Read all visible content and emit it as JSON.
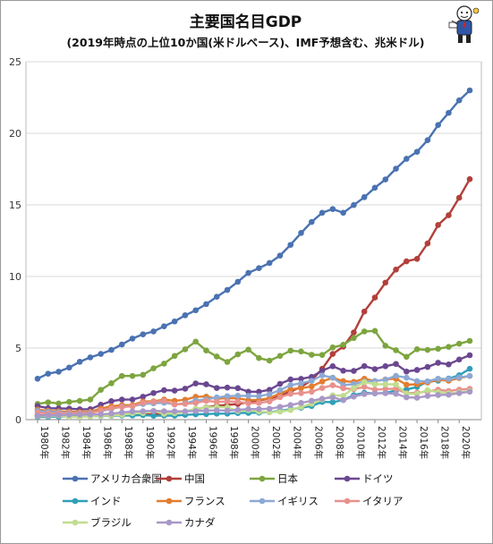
{
  "title": "主要国名目GDP",
  "subtitle": "(2019年時点の上位10か国(米ドルベース)、IMF予想含む、兆米ドル)",
  "chart_data": {
    "type": "line",
    "grid": "horizontal",
    "legend_position": "bottom",
    "ylim": [
      0,
      25
    ],
    "yticks": [
      "0",
      "5",
      "10",
      "15",
      "20",
      "25"
    ],
    "x": [
      1980,
      1981,
      1982,
      1983,
      1984,
      1985,
      1986,
      1987,
      1988,
      1989,
      1990,
      1991,
      1992,
      1993,
      1994,
      1995,
      1996,
      1997,
      1998,
      1999,
      2000,
      2001,
      2002,
      2003,
      2004,
      2005,
      2006,
      2007,
      2008,
      2009,
      2010,
      2011,
      2012,
      2013,
      2014,
      2015,
      2016,
      2017,
      2018,
      2019,
      2020,
      2021
    ],
    "xticks": [
      "1980年",
      "1982年",
      "1984年",
      "1986年",
      "1988年",
      "1990年",
      "1992年",
      "1994年",
      "1996年",
      "1998年",
      "2000年",
      "2002年",
      "2004年",
      "2006年",
      "2008年",
      "2010年",
      "2012年",
      "2014年",
      "2016年",
      "2018年",
      "2020年"
    ],
    "series": [
      {
        "name": "アメリカ合衆国",
        "color": "#4a72b2",
        "values": [
          2.86,
          3.21,
          3.35,
          3.64,
          4.04,
          4.35,
          4.59,
          4.87,
          5.25,
          5.66,
          5.96,
          6.16,
          6.52,
          6.86,
          7.29,
          7.64,
          8.07,
          8.58,
          9.06,
          9.63,
          10.25,
          10.58,
          10.94,
          11.46,
          12.21,
          13.04,
          13.81,
          14.45,
          14.71,
          14.45,
          14.99,
          15.54,
          16.2,
          16.78,
          17.53,
          18.22,
          18.71,
          19.52,
          20.58,
          21.43,
          22.3,
          23.0
        ]
      },
      {
        "name": "中国",
        "color": "#b1403b",
        "values": [
          0.3,
          0.29,
          0.28,
          0.3,
          0.31,
          0.31,
          0.3,
          0.27,
          0.31,
          0.35,
          0.36,
          0.38,
          0.43,
          0.44,
          0.56,
          0.73,
          0.86,
          0.96,
          1.03,
          1.09,
          1.21,
          1.34,
          1.47,
          1.66,
          1.96,
          2.29,
          2.75,
          3.55,
          4.59,
          5.1,
          6.09,
          7.55,
          8.53,
          9.57,
          10.48,
          11.06,
          11.23,
          12.31,
          13.6,
          14.28,
          15.5,
          16.8
        ]
      },
      {
        "name": "日本",
        "color": "#7da53f",
        "values": [
          1.1,
          1.21,
          1.13,
          1.24,
          1.31,
          1.4,
          2.08,
          2.54,
          3.05,
          3.05,
          3.13,
          3.58,
          3.91,
          4.45,
          4.91,
          5.45,
          4.83,
          4.41,
          4.03,
          4.56,
          4.89,
          4.3,
          4.12,
          4.45,
          4.82,
          4.76,
          4.53,
          4.52,
          5.04,
          5.23,
          5.7,
          6.16,
          6.2,
          5.16,
          4.85,
          4.39,
          4.92,
          4.87,
          4.95,
          5.08,
          5.3,
          5.5
        ]
      },
      {
        "name": "ドイツ",
        "color": "#6a4790",
        "values": [
          0.95,
          0.8,
          0.78,
          0.77,
          0.72,
          0.73,
          1.04,
          1.29,
          1.4,
          1.4,
          1.6,
          1.86,
          2.06,
          2.03,
          2.16,
          2.53,
          2.47,
          2.21,
          2.24,
          2.2,
          1.95,
          1.95,
          2.08,
          2.5,
          2.81,
          2.85,
          2.99,
          3.42,
          3.73,
          3.42,
          3.4,
          3.74,
          3.53,
          3.73,
          3.89,
          3.36,
          3.47,
          3.68,
          3.97,
          3.86,
          4.2,
          4.5
        ]
      },
      {
        "name": "インド",
        "color": "#2f9fb8",
        "values": [
          0.19,
          0.2,
          0.21,
          0.22,
          0.21,
          0.23,
          0.25,
          0.27,
          0.29,
          0.29,
          0.32,
          0.27,
          0.29,
          0.28,
          0.33,
          0.37,
          0.39,
          0.42,
          0.42,
          0.46,
          0.47,
          0.49,
          0.52,
          0.62,
          0.72,
          0.83,
          0.95,
          1.24,
          1.22,
          1.37,
          1.71,
          1.87,
          1.83,
          1.86,
          2.04,
          2.1,
          2.29,
          2.65,
          2.72,
          2.87,
          3.1,
          3.55
        ]
      },
      {
        "name": "フランス",
        "color": "#e37d2f",
        "values": [
          0.7,
          0.62,
          0.58,
          0.56,
          0.53,
          0.55,
          0.77,
          0.93,
          1.01,
          1.01,
          1.27,
          1.28,
          1.4,
          1.32,
          1.39,
          1.6,
          1.61,
          1.46,
          1.5,
          1.49,
          1.36,
          1.38,
          1.5,
          1.84,
          2.12,
          2.2,
          2.32,
          2.66,
          2.93,
          2.69,
          2.64,
          2.86,
          2.68,
          2.81,
          2.86,
          2.44,
          2.47,
          2.59,
          2.79,
          2.72,
          2.9,
          3.05
        ]
      },
      {
        "name": "イギリス",
        "color": "#8da9d4",
        "values": [
          0.6,
          0.55,
          0.51,
          0.48,
          0.46,
          0.49,
          0.6,
          0.75,
          0.91,
          0.93,
          1.09,
          1.14,
          1.18,
          1.06,
          1.14,
          1.34,
          1.41,
          1.55,
          1.64,
          1.67,
          1.66,
          1.64,
          1.78,
          2.06,
          2.42,
          2.54,
          2.71,
          3.09,
          2.93,
          2.41,
          2.48,
          2.66,
          2.7,
          2.79,
          3.06,
          2.93,
          2.69,
          2.68,
          2.86,
          2.83,
          2.95,
          3.05
        ]
      },
      {
        "name": "イタリア",
        "color": "#e8918c",
        "values": [
          0.48,
          0.43,
          0.43,
          0.44,
          0.44,
          0.45,
          0.64,
          0.8,
          0.88,
          0.93,
          1.18,
          1.24,
          1.32,
          1.06,
          1.1,
          1.17,
          1.31,
          1.24,
          1.27,
          1.25,
          1.14,
          1.17,
          1.27,
          1.57,
          1.8,
          1.85,
          1.95,
          2.21,
          2.4,
          2.19,
          2.13,
          2.29,
          2.09,
          2.14,
          2.16,
          1.84,
          1.88,
          1.96,
          2.09,
          2.0,
          2.1,
          2.15
        ]
      },
      {
        "name": "ブラジル",
        "color": "#c1dd8f",
        "values": [
          0.24,
          0.26,
          0.28,
          0.19,
          0.19,
          0.22,
          0.26,
          0.29,
          0.33,
          0.44,
          0.46,
          0.6,
          0.4,
          0.44,
          0.55,
          0.77,
          0.85,
          0.88,
          0.86,
          0.6,
          0.66,
          0.56,
          0.51,
          0.56,
          0.67,
          0.89,
          1.11,
          1.4,
          1.7,
          1.67,
          2.21,
          2.62,
          2.47,
          2.47,
          2.46,
          1.8,
          1.8,
          2.06,
          1.92,
          1.84,
          1.9,
          2.0
        ]
      },
      {
        "name": "カナダ",
        "color": "#a998c7",
        "values": [
          0.27,
          0.3,
          0.31,
          0.34,
          0.35,
          0.36,
          0.37,
          0.42,
          0.5,
          0.57,
          0.59,
          0.61,
          0.59,
          0.58,
          0.58,
          0.6,
          0.63,
          0.65,
          0.63,
          0.68,
          0.74,
          0.74,
          0.76,
          0.89,
          1.02,
          1.17,
          1.32,
          1.46,
          1.55,
          1.37,
          1.61,
          1.79,
          1.83,
          1.85,
          1.8,
          1.56,
          1.53,
          1.65,
          1.72,
          1.74,
          1.85,
          1.95
        ]
      }
    ]
  }
}
